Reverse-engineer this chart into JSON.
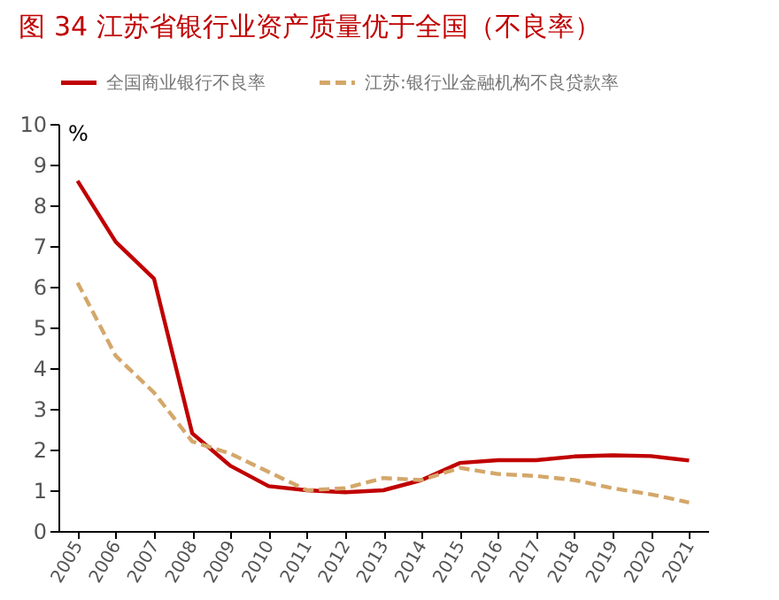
{
  "chart_data": {
    "type": "line",
    "title": "图 34   江苏省银行业资产质量优于全国（不良率）",
    "ylabel": "%",
    "categories": [
      "2005",
      "2006",
      "2007",
      "2008",
      "2009",
      "2010",
      "2011",
      "2012",
      "2013",
      "2014",
      "2015",
      "2016",
      "2017",
      "2018",
      "2019",
      "2020",
      "2021"
    ],
    "series": [
      {
        "name": "全国商业银行不良率",
        "color": "#c00000",
        "line_style": "solid",
        "values": [
          8.6,
          7.1,
          6.2,
          2.4,
          1.6,
          1.1,
          1.0,
          0.95,
          1.0,
          1.25,
          1.67,
          1.74,
          1.74,
          1.83,
          1.86,
          1.84,
          1.73
        ]
      },
      {
        "name": "江苏:银行业金融机构不良贷款率",
        "color": "#d4a76a",
        "line_style": "dashed",
        "values": [
          6.1,
          4.3,
          3.4,
          2.2,
          1.9,
          1.45,
          1.0,
          1.05,
          1.3,
          1.25,
          1.55,
          1.4,
          1.35,
          1.25,
          1.05,
          0.9,
          0.7
        ]
      }
    ],
    "ylim": [
      0,
      10
    ],
    "yticks": [
      0,
      1,
      2,
      3,
      4,
      5,
      6,
      7,
      8,
      9,
      10
    ],
    "grid": false,
    "legend": "top"
  }
}
